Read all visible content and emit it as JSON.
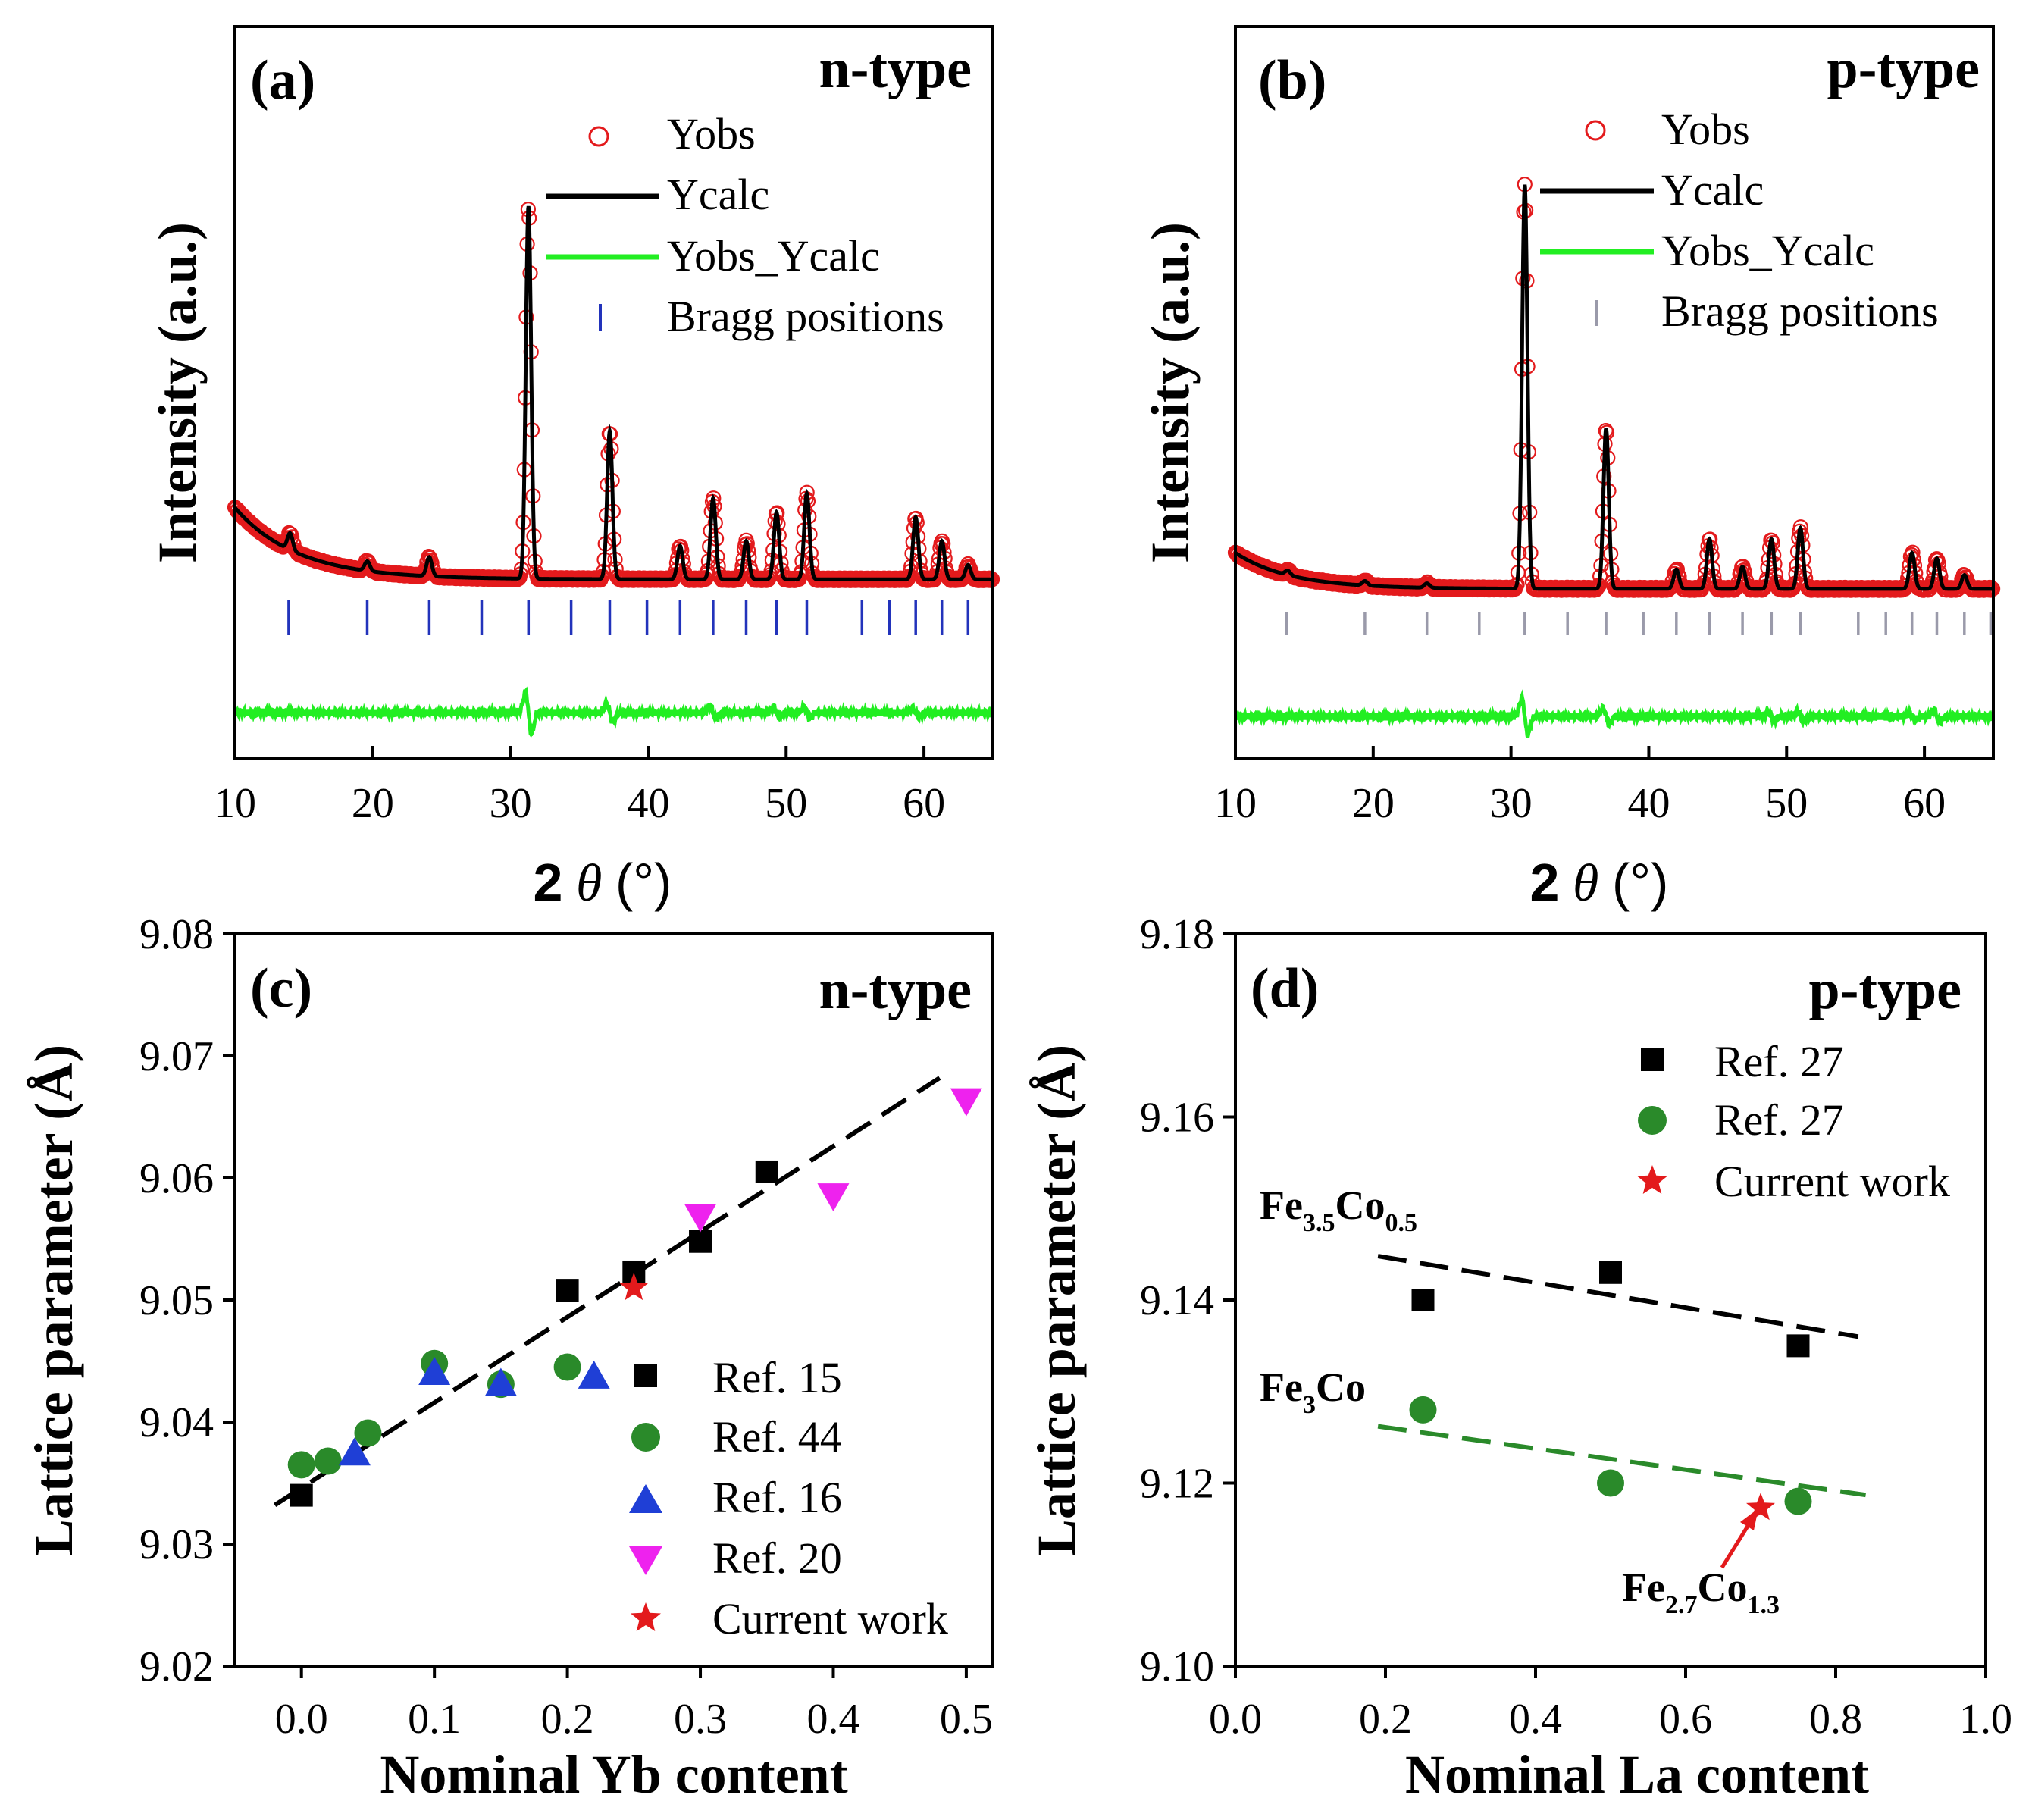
{
  "chart_data": [
    {
      "id": "a",
      "type": "line",
      "panel_label": "(a)",
      "title": "n-type",
      "xlabel_num": "2",
      "xlabel_theta": "θ",
      "xlabel_unit": "(°)",
      "ylabel": "Intensity (a.u.)",
      "xlim": [
        10,
        65
      ],
      "ylim": [
        0,
        100
      ],
      "xticks": [
        10,
        20,
        30,
        40,
        50,
        60
      ],
      "baseline": {
        "start": 15.0,
        "decay": 4.5,
        "end": 2.5
      },
      "peaks": [
        {
          "x": 14.0,
          "h": 3.5
        },
        {
          "x": 19.6,
          "h": 2.0
        },
        {
          "x": 24.1,
          "h": 4.0
        },
        {
          "x": 31.3,
          "h": 78.0
        },
        {
          "x": 37.2,
          "h": 31.0
        },
        {
          "x": 42.3,
          "h": 7.0
        },
        {
          "x": 44.7,
          "h": 17.0
        },
        {
          "x": 47.1,
          "h": 8.0
        },
        {
          "x": 49.3,
          "h": 14.0
        },
        {
          "x": 51.5,
          "h": 18.0
        },
        {
          "x": 59.4,
          "h": 13.0
        },
        {
          "x": 61.3,
          "h": 8.0
        },
        {
          "x": 63.2,
          "h": 3.0
        }
      ],
      "bragg_positions": [
        13.9,
        19.6,
        24.1,
        27.9,
        31.3,
        34.4,
        37.2,
        39.9,
        42.3,
        44.7,
        47.1,
        49.3,
        51.5,
        55.5,
        57.5,
        59.4,
        61.3,
        63.2
      ],
      "diff_level": -22.0,
      "diff_spikes": [
        {
          "x": 31.3,
          "a": 4.0
        },
        {
          "x": 37.2,
          "a": 1.8
        },
        {
          "x": 44.7,
          "a": 1.2
        },
        {
          "x": 49.3,
          "a": 1.0
        },
        {
          "x": 51.5,
          "a": 1.0
        },
        {
          "x": 59.4,
          "a": 0.8
        }
      ],
      "legend": [
        "Yobs",
        "Ycalc",
        "Yobs_Ycalc",
        "Bragg positions"
      ],
      "series_colors": {
        "obs": "#e31a1c",
        "calc": "#000000",
        "diff": "#22ee22",
        "bragg": "#2233bb"
      }
    },
    {
      "id": "b",
      "type": "line",
      "panel_label": "(b)",
      "title": "p-type",
      "xlabel_num": "2",
      "xlabel_theta": "θ",
      "xlabel_unit": "(°)",
      "ylabel": "Intensity (a.u.)",
      "xlim": [
        10,
        65
      ],
      "ylim": [
        0,
        100
      ],
      "xticks": [
        10,
        20,
        30,
        40,
        50,
        60
      ],
      "baseline": {
        "start": 6.5,
        "decay": 4.0,
        "end": 1.8
      },
      "peaks": [
        {
          "x": 13.8,
          "h": 0.8
        },
        {
          "x": 19.4,
          "h": 0.8
        },
        {
          "x": 23.9,
          "h": 0.8
        },
        {
          "x": 31.0,
          "h": 73.0
        },
        {
          "x": 36.9,
          "h": 29.0
        },
        {
          "x": 42.0,
          "h": 3.5
        },
        {
          "x": 44.4,
          "h": 9.0
        },
        {
          "x": 46.8,
          "h": 4.0
        },
        {
          "x": 48.9,
          "h": 9.0
        },
        {
          "x": 51.0,
          "h": 11.0
        },
        {
          "x": 59.1,
          "h": 6.5
        },
        {
          "x": 60.9,
          "h": 5.5
        },
        {
          "x": 62.9,
          "h": 2.5
        }
      ],
      "bragg_positions": [
        13.7,
        19.4,
        23.9,
        27.7,
        31.0,
        34.1,
        36.9,
        39.6,
        42.0,
        44.4,
        46.8,
        48.9,
        51.0,
        55.2,
        57.2,
        59.1,
        60.9,
        62.9,
        64.8
      ],
      "diff_level": -22.0,
      "diff_spikes": [
        {
          "x": 31.0,
          "a": 3.5
        },
        {
          "x": 36.9,
          "a": 1.5
        },
        {
          "x": 48.9,
          "a": 0.8
        },
        {
          "x": 51.0,
          "a": 1.0
        },
        {
          "x": 59.1,
          "a": 0.6
        },
        {
          "x": 60.9,
          "a": 1.2
        }
      ],
      "legend": [
        "Yobs",
        "Ycalc",
        "Yobs_Ycalc",
        "Bragg positions"
      ],
      "series_colors": {
        "obs": "#e31a1c",
        "calc": "#000000",
        "diff": "#22ee22",
        "bragg": "#9a9aaa"
      }
    },
    {
      "id": "c",
      "type": "scatter",
      "panel_label": "(c)",
      "title": "n-type",
      "xlabel": "Nominal Yb content",
      "ylabel": "Lattice parameter (Å)",
      "xlim": [
        -0.05,
        0.52
      ],
      "ylim": [
        9.02,
        9.08
      ],
      "xticks": [
        "0.0",
        "0.1",
        "0.2",
        "0.3",
        "0.4",
        "0.5"
      ],
      "yticks": [
        "9.02",
        "9.03",
        "9.04",
        "9.05",
        "9.06",
        "9.07",
        "9.08"
      ],
      "series": [
        {
          "name": "Ref. 15",
          "marker": "square",
          "color": "#000000",
          "x": [
            0.0,
            0.2,
            0.25,
            0.3,
            0.35
          ],
          "y": [
            9.034,
            9.0508,
            9.0523,
            9.0548,
            9.0605
          ]
        },
        {
          "name": "Ref. 44",
          "marker": "circle",
          "color": "#2a8a2a",
          "x": [
            0.0,
            0.02,
            0.05,
            0.1,
            0.15,
            0.2
          ],
          "y": [
            9.0365,
            9.0368,
            9.0391,
            9.0448,
            9.0431,
            9.0445
          ]
        },
        {
          "name": "Ref. 16",
          "marker": "triangle-up",
          "color": "#1f3fd6",
          "x": [
            0.04,
            0.1,
            0.15,
            0.22
          ],
          "y": [
            9.0375,
            9.0441,
            9.0432,
            9.0438
          ]
        },
        {
          "name": "Ref. 20",
          "marker": "triangle-down",
          "color": "#ee22ee",
          "x": [
            0.3,
            0.4,
            0.5
          ],
          "y": [
            9.0568,
            9.0585,
            9.0663
          ]
        },
        {
          "name": "Current work",
          "marker": "star",
          "color": "#e31a1c",
          "x": [
            0.25
          ],
          "y": [
            9.051
          ]
        }
      ],
      "fit_lines": [
        {
          "x": [
            -0.02,
            0.48
          ],
          "y": [
            9.0332,
            9.0682
          ],
          "color": "#000000"
        }
      ]
    },
    {
      "id": "d",
      "type": "scatter",
      "panel_label": "(d)",
      "title": "p-type",
      "xlabel": "Nominal La content",
      "ylabel": "Lattice parameter (Å)",
      "xlim": [
        0.0,
        1.0
      ],
      "ylim": [
        9.1,
        9.18
      ],
      "xticks": [
        "0.0",
        "0.2",
        "0.4",
        "0.6",
        "0.8",
        "1.0"
      ],
      "yticks": [
        "9.10",
        "9.12",
        "9.14",
        "9.16",
        "9.18"
      ],
      "series": [
        {
          "name": "Ref. 27",
          "marker": "square",
          "color": "#000000",
          "x": [
            0.25,
            0.5,
            0.75
          ],
          "y": [
            9.14,
            9.143,
            9.135
          ]
        },
        {
          "name": "Ref. 27",
          "marker": "circle",
          "color": "#2a8a2a",
          "x": [
            0.25,
            0.5,
            0.75
          ],
          "y": [
            9.128,
            9.12,
            9.118
          ]
        },
        {
          "name": "Current work",
          "marker": "star",
          "color": "#e31a1c",
          "x": [
            0.7
          ],
          "y": [
            9.1173
          ]
        }
      ],
      "fit_lines": [
        {
          "x": [
            0.19,
            0.83
          ],
          "y": [
            9.1448,
            9.136
          ],
          "color": "#000000"
        },
        {
          "x": [
            0.19,
            0.84
          ],
          "y": [
            9.1262,
            9.1187
          ],
          "color": "#2a8a2a"
        }
      ],
      "annotations": {
        "fe35co05": {
          "base1": "Fe",
          "sub1": "3.5",
          "base2": "Co",
          "sub2": "0.5"
        },
        "fe3co": {
          "base1": "Fe",
          "sub1": "3",
          "base2": "Co"
        },
        "fe27co13": {
          "base1": "Fe",
          "sub1": "2.7",
          "base2": "Co",
          "sub2": "1.3"
        }
      }
    }
  ]
}
